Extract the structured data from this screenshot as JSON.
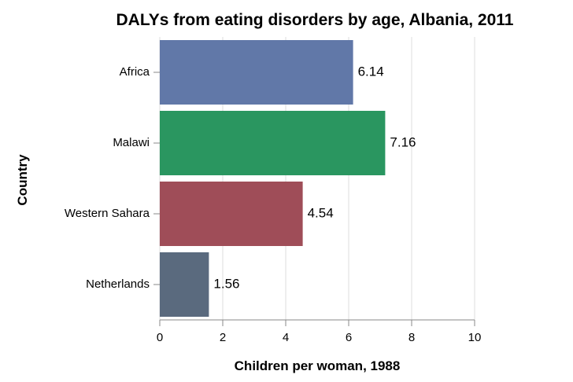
{
  "chart_data": {
    "type": "bar",
    "orientation": "horizontal",
    "title": "DALYs from eating disorders by age, Albania, 2011",
    "xlabel": "Children per woman, 1988",
    "ylabel": "Country",
    "categories": [
      "Africa",
      "Malawi",
      "Western Sahara",
      "Netherlands"
    ],
    "values": [
      6.14,
      7.16,
      4.54,
      1.56
    ],
    "value_labels": [
      "6.14",
      "7.16",
      "4.54",
      "1.56"
    ],
    "colors": [
      "#6178a8",
      "#2a9660",
      "#9f4d58",
      "#5a6a7e"
    ],
    "xlim": [
      0,
      10
    ],
    "xticks": [
      0,
      2,
      4,
      6,
      8,
      10
    ],
    "grid": true
  }
}
